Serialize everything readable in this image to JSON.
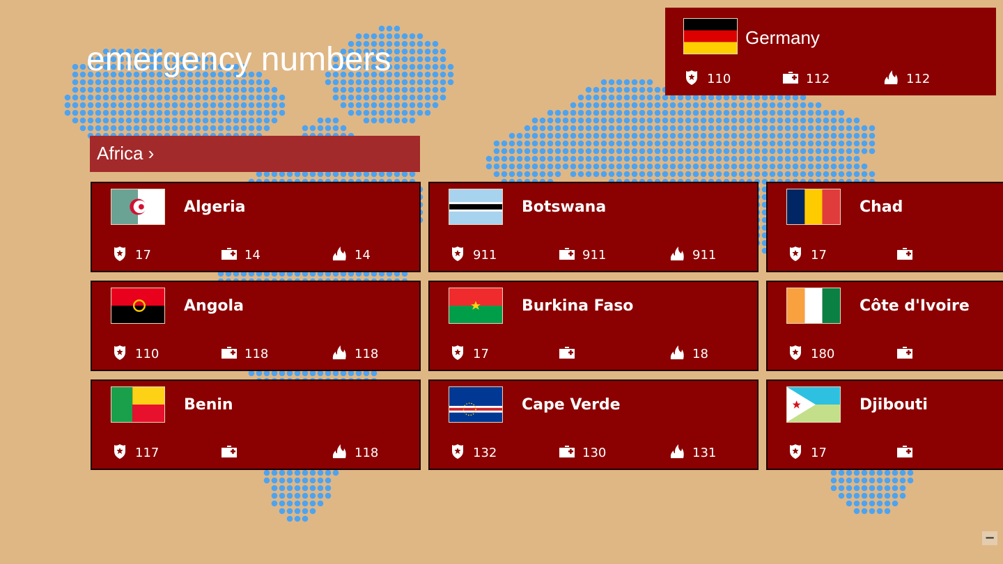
{
  "app_title": "emergency numbers",
  "group_header": "Africa ›",
  "colors": {
    "background": "#dfb785",
    "card": "#8b0000",
    "header": "#a32a2a",
    "map_dots": "#4da3f0"
  },
  "icons": {
    "police": "police-badge-icon",
    "ambulance": "medical-kit-icon",
    "fire": "fire-icon"
  },
  "featured": {
    "name": "Germany",
    "flag": "germany",
    "police": "110",
    "ambulance": "112",
    "fire": "112"
  },
  "countries": [
    {
      "name": "Algeria",
      "flag": "algeria",
      "police": "17",
      "ambulance": "14",
      "fire": "14"
    },
    {
      "name": "Angola",
      "flag": "angola",
      "police": "110",
      "ambulance": "118",
      "fire": "118"
    },
    {
      "name": "Benin",
      "flag": "benin",
      "police": "117",
      "ambulance": "",
      "fire": "118"
    },
    {
      "name": "Botswana",
      "flag": "botswana",
      "police": "911",
      "ambulance": "911",
      "fire": "911"
    },
    {
      "name": "Burkina Faso",
      "flag": "burkina-faso",
      "police": "17",
      "ambulance": "",
      "fire": "18"
    },
    {
      "name": "Cape Verde",
      "flag": "cape-verde",
      "police": "132",
      "ambulance": "130",
      "fire": "131"
    },
    {
      "name": "Chad",
      "flag": "chad",
      "police": "17",
      "ambulance": "",
      "fire": null
    },
    {
      "name": "Côte d'Ivoire",
      "flag": "cote-divoire",
      "police": "180",
      "ambulance": "",
      "fire": null
    },
    {
      "name": "Djibouti",
      "flag": "djibouti",
      "police": "17",
      "ambulance": "",
      "fire": null
    }
  ],
  "zoom_out_label": "−"
}
